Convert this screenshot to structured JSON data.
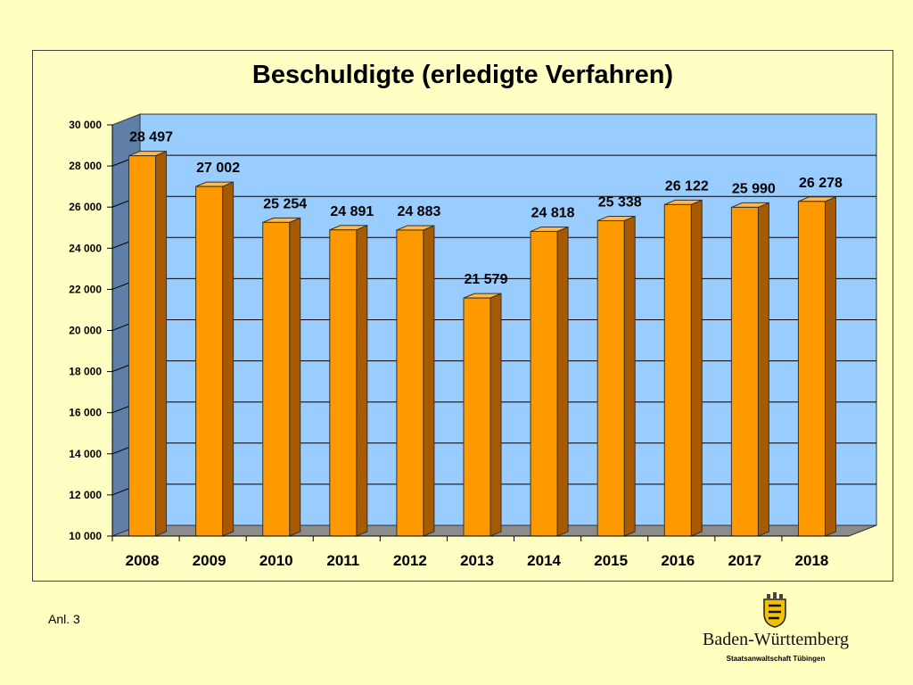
{
  "chart_data": {
    "type": "bar",
    "title": "Beschuldigte (erledigte Verfahren)",
    "categories": [
      "2008",
      "2009",
      "2010",
      "2011",
      "2012",
      "2013",
      "2014",
      "2015",
      "2016",
      "2017",
      "2018"
    ],
    "values": [
      28497,
      27002,
      25254,
      24891,
      24883,
      21579,
      24818,
      25338,
      26122,
      25990,
      26278
    ],
    "value_labels": [
      "28 497",
      "27 002",
      "25 254",
      "24 891",
      "24 883",
      "21 579",
      "24 818",
      "25 338",
      "26 122",
      "25 990",
      "26 278"
    ],
    "ylim": [
      10000,
      30000
    ],
    "y_ticks": [
      "10 000",
      "12 000",
      "14 000",
      "16 000",
      "18 000",
      "20 000",
      "22 000",
      "24 000",
      "26 000",
      "28 000",
      "30 000"
    ],
    "xlabel": "",
    "ylabel": "",
    "grid": true,
    "legend": "none",
    "style": "3d-column",
    "colors": {
      "bar_front": "#ff9900",
      "bar_side": "#a85a00",
      "bar_top": "#ffb84d",
      "plot_back": "#99ccff",
      "side_wall": "#5f7fa8",
      "floor": "#8c8c8c",
      "background": "#ffffc0"
    }
  },
  "footer": {
    "note": "Anl. 3"
  },
  "logo": {
    "name": "Baden-Württemberg",
    "subtitle": "Staatsanwaltschaft Tübingen",
    "icon": "coat-of-arms-icon"
  }
}
